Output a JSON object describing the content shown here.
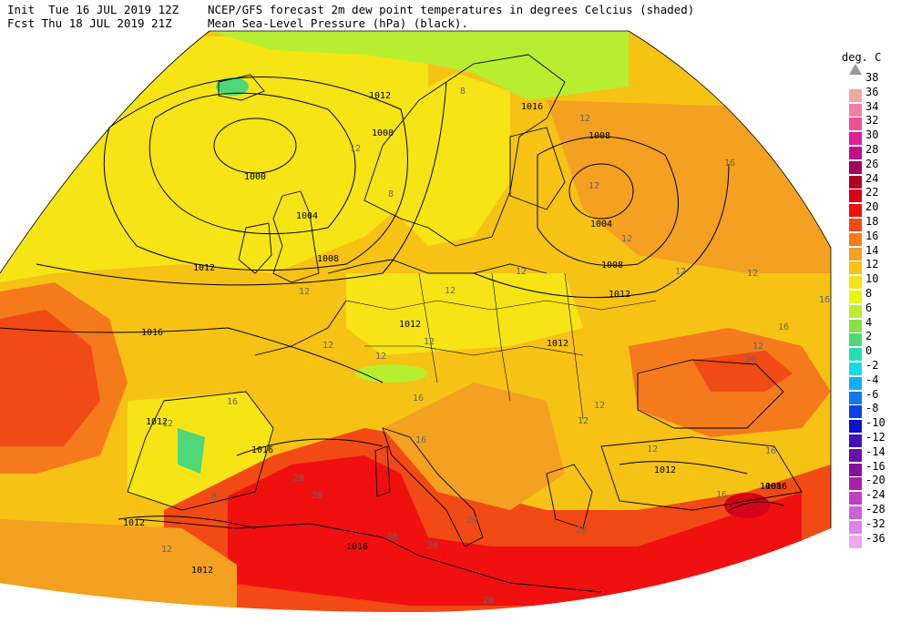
{
  "header": {
    "line1_left": "Init  Tue 16 JUL 2019 12Z",
    "line2_left": "Fcst Thu 18 JUL 2019 21Z",
    "line1_right": "NCEP/GFS forecast 2m dew point temperatures in degrees Celcius (shaded)",
    "line2_right": "Mean Sea-Level Pressure (hPa) (black)."
  },
  "legend": {
    "title": "deg. C",
    "entries": [
      {
        "label": "38",
        "color": "#9a9a9a"
      },
      {
        "label": "36",
        "color": "#f4a6a6"
      },
      {
        "label": "34",
        "color": "#f27fa6"
      },
      {
        "label": "32",
        "color": "#ef4f9a"
      },
      {
        "label": "30",
        "color": "#e01f98"
      },
      {
        "label": "28",
        "color": "#c41084"
      },
      {
        "label": "26",
        "color": "#a00060"
      },
      {
        "label": "24",
        "color": "#b0002a"
      },
      {
        "label": "22",
        "color": "#d6001a"
      },
      {
        "label": "20",
        "color": "#f01010"
      },
      {
        "label": "18",
        "color": "#f24a14"
      },
      {
        "label": "16",
        "color": "#f47a1c"
      },
      {
        "label": "14",
        "color": "#f4a020"
      },
      {
        "label": "12",
        "color": "#f6c214"
      },
      {
        "label": "10",
        "color": "#f6e414"
      },
      {
        "label": "8",
        "color": "#e6f614"
      },
      {
        "label": "6",
        "color": "#b8ee30"
      },
      {
        "label": "4",
        "color": "#86e04a"
      },
      {
        "label": "2",
        "color": "#4ed87a"
      },
      {
        "label": "0",
        "color": "#24e0b0"
      },
      {
        "label": "-2",
        "color": "#1ad8e8"
      },
      {
        "label": "-4",
        "color": "#10b0f0"
      },
      {
        "label": "-6",
        "color": "#1078f0"
      },
      {
        "label": "-8",
        "color": "#1040e8"
      },
      {
        "label": "-10",
        "color": "#1010d0"
      },
      {
        "label": "-12",
        "color": "#4010b8"
      },
      {
        "label": "-14",
        "color": "#6a10a8"
      },
      {
        "label": "-16",
        "color": "#8a1098"
      },
      {
        "label": "-20",
        "color": "#a820a8"
      },
      {
        "label": "-24",
        "color": "#c040c0"
      },
      {
        "label": "-28",
        "color": "#d060d8"
      },
      {
        "label": "-32",
        "color": "#e080e8"
      },
      {
        "label": "-36",
        "color": "#f0a8f0"
      }
    ]
  },
  "map": {
    "isobar_labels": [
      "1012",
      "1008",
      "1016",
      "1008",
      "1000",
      "1004",
      "1012",
      "1008",
      "1016",
      "1012",
      "1004",
      "1008",
      "1012",
      "1016",
      "1012",
      "1016",
      "1012",
      "1016",
      "1012",
      "1008",
      "1012",
      "1012"
    ],
    "dewpoint_labels": [
      "8",
      "12",
      "12",
      "16",
      "12",
      "12",
      "8",
      "12",
      "12",
      "12",
      "16",
      "12",
      "16",
      "12",
      "12",
      "12",
      "12",
      "16",
      "20",
      "20",
      "20",
      "20",
      "20",
      "16",
      "12",
      "8",
      "12",
      "12",
      "12",
      "16",
      "16",
      "12",
      "12",
      "16",
      "20",
      "20",
      "16"
    ],
    "colors": {
      "yellow": "#f6e414",
      "yellow_orange": "#f6c214",
      "orange": "#f4a020",
      "dark_orange": "#f47a1c",
      "red_orange": "#f24a14",
      "red": "#f01010",
      "crimson": "#d6001a",
      "light_green": "#b8ee30",
      "green": "#86e04a",
      "teal": "#24e0b0",
      "isobar": "#000000",
      "border": "#000000",
      "contour_grey": "#9a9a9a"
    }
  }
}
